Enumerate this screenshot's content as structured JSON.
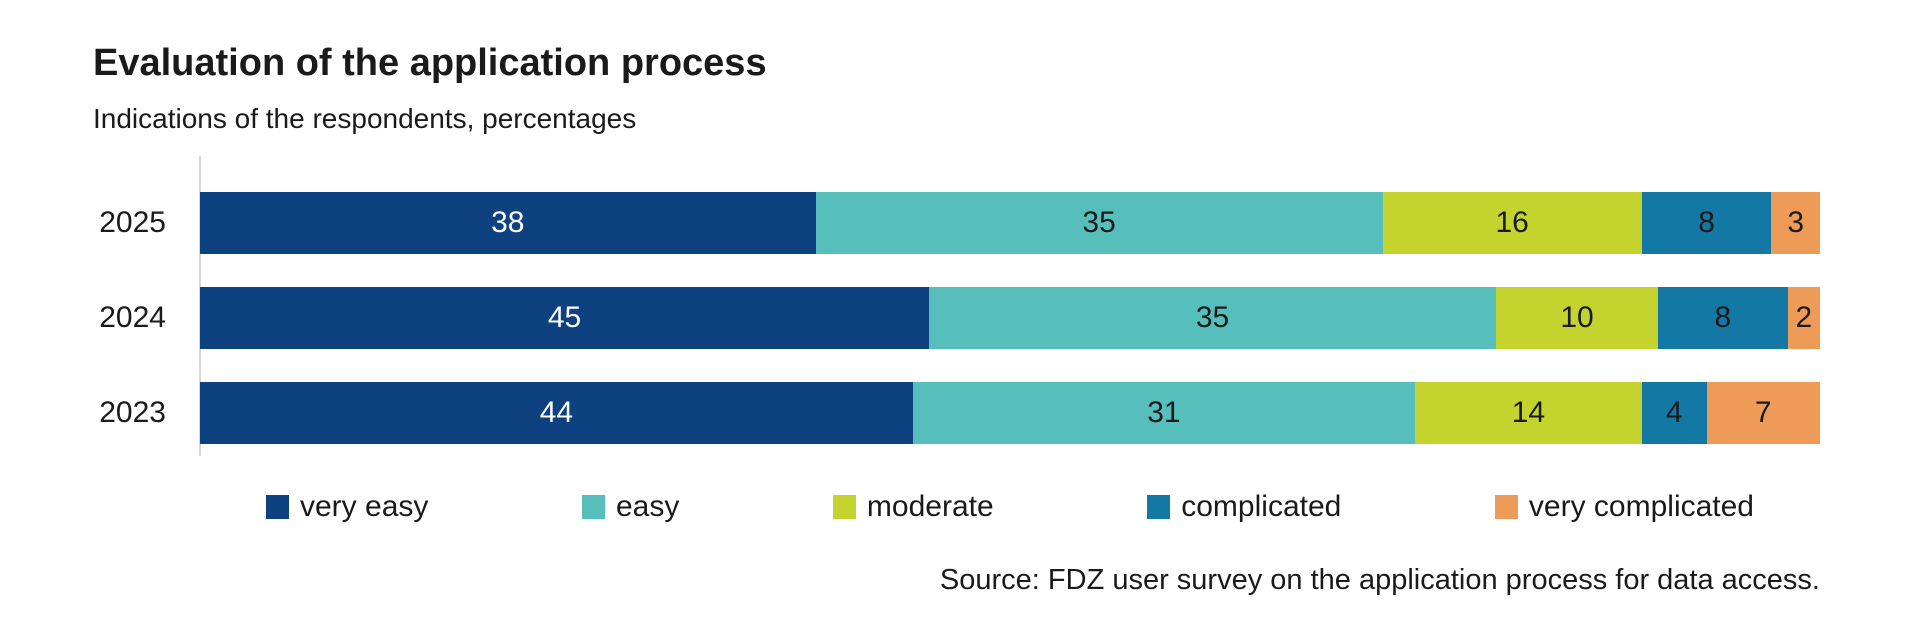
{
  "header": {
    "title": "Evaluation of the application process",
    "subtitle": "Indications of the respondents, percentages"
  },
  "source": {
    "text": "Source: FDZ user survey on the application process for data access."
  },
  "colors": {
    "very_easy": "#0d4180",
    "easy": "#56bebb",
    "moderate": "#c4d32d",
    "complicated": "#1478a5",
    "very_complicated": "#ee9b58",
    "axis_line": "#d8d8d8",
    "text": "#1a1a1a",
    "background": "#ffffff"
  },
  "chart_data": {
    "type": "bar",
    "orientation": "horizontal",
    "stacked": true,
    "title": "Evaluation of the application process",
    "subtitle": "Indications of the respondents, percentages",
    "categories": [
      "2025",
      "2024",
      "2023"
    ],
    "series": [
      {
        "name": "very easy",
        "color": "#0d4180",
        "label_color": "#ffffff",
        "values": [
          38,
          45,
          44
        ]
      },
      {
        "name": "easy",
        "color": "#56bebb",
        "label_color": "#1a1a1a",
        "values": [
          35,
          35,
          31
        ]
      },
      {
        "name": "moderate",
        "color": "#c4d32d",
        "label_color": "#1a1a1a",
        "values": [
          16,
          10,
          14
        ]
      },
      {
        "name": "complicated",
        "color": "#1478a5",
        "label_color": "#1a1a1a",
        "values": [
          8,
          8,
          4
        ]
      },
      {
        "name": "very complicated",
        "color": "#ee9b58",
        "label_color": "#1a1a1a",
        "values": [
          3,
          2,
          7
        ]
      }
    ],
    "xlim": [
      0,
      100
    ],
    "value_labels": true,
    "legend_position": "bottom",
    "grid": false,
    "source": "Source: FDZ user survey on the application process for data access."
  }
}
